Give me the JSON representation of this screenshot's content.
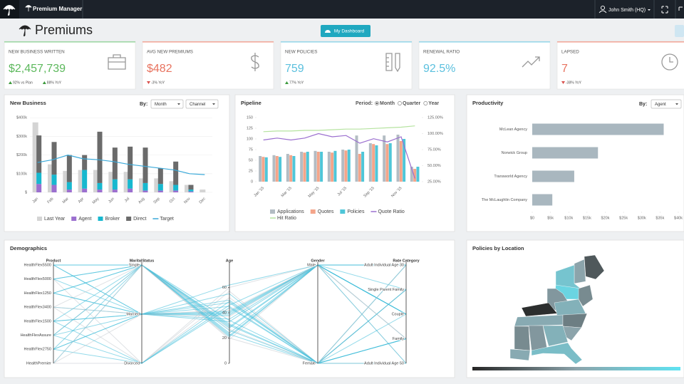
{
  "header": {
    "app_name": "Premium Manager",
    "user": "John Smith (HQ)"
  },
  "page_title": "Premiums",
  "dashboard_button": "My Dashboard",
  "kpis": [
    {
      "label": "NEW BUSINESS WRITTEN",
      "value": "$2,457,739",
      "color": "#5cb85c",
      "accent": "#9fd8a6",
      "trends": [
        {
          "dir": "up",
          "text": "92% vs Plan"
        },
        {
          "dir": "up",
          "text": "88% YoY"
        }
      ]
    },
    {
      "label": "AVG NEW PREMIUMS",
      "value": "$482",
      "color": "#e8735f",
      "accent": "#f2aa9c",
      "trends": [
        {
          "dir": "down",
          "text": "-3% YoY"
        }
      ]
    },
    {
      "label": "NEW POLICIES",
      "value": "759",
      "color": "#5bc0de",
      "accent": "#9ad8ea",
      "trends": [
        {
          "dir": "up",
          "text": "77% YoY"
        }
      ]
    },
    {
      "label": "RENEWAL RATIO",
      "value": "92.5%",
      "color": "#5bc0de",
      "accent": "#9ad8ea",
      "trends": []
    },
    {
      "label": "LAPSED",
      "value": "7",
      "color": "#e8735f",
      "accent": "#f2aa9c",
      "trends": [
        {
          "dir": "down",
          "text": "-38% YoY"
        }
      ]
    }
  ],
  "chart_data": [
    {
      "type": "bar",
      "title": "New Business",
      "by_label": "By:",
      "options": [
        "Month",
        "Channel"
      ],
      "categories": [
        "Jan",
        "Feb",
        "Mar",
        "Apr",
        "May",
        "Jun",
        "Jul",
        "Aug",
        "Sep",
        "Oct",
        "Nov",
        "Dec"
      ],
      "series": [
        {
          "name": "Last Year",
          "color": "#d4d4d4",
          "kind": "bar",
          "stack": false,
          "values": [
            375000,
            150000,
            115000,
            120000,
            120000,
            110000,
            110000,
            75000,
            75000,
            60000,
            40000,
            15000
          ]
        },
        {
          "name": "Agent",
          "color": "#9b6fcf",
          "kind": "bar",
          "stack": true,
          "values": [
            45000,
            40000,
            15000,
            20000,
            15000,
            15000,
            20000,
            10000,
            10000,
            10000,
            5000,
            0
          ]
        },
        {
          "name": "Broker",
          "color": "#17b8cf",
          "kind": "bar",
          "stack": true,
          "values": [
            60000,
            55000,
            40000,
            100000,
            35000,
            55000,
            50000,
            40000,
            35000,
            30000,
            10000,
            0
          ]
        },
        {
          "name": "Direct",
          "color": "#6b6b6b",
          "kind": "bar",
          "stack": true,
          "values": [
            200000,
            175000,
            145000,
            80000,
            275000,
            170000,
            175000,
            190000,
            85000,
            125000,
            25000,
            0
          ]
        },
        {
          "name": "Target",
          "color": "#3aa9d9",
          "kind": "line",
          "stack": false,
          "values": [
            160000,
            175000,
            200000,
            180000,
            175000,
            165000,
            150000,
            140000,
            130000,
            120000,
            100000,
            95000
          ]
        }
      ],
      "ylim": [
        0,
        420000
      ],
      "yticks": [
        {
          "value": 0,
          "label": "$"
        },
        {
          "value": 100000,
          "label": "$100k"
        },
        {
          "value": 200000,
          "label": "$200k"
        },
        {
          "value": 300000,
          "label": "$300k"
        },
        {
          "value": 400000,
          "label": "$400k"
        }
      ],
      "grid": true
    },
    {
      "type": "combo",
      "title": "Pipeline",
      "period_label": "Period:",
      "periods": [
        "Month",
        "Quarter",
        "Year"
      ],
      "selected_period": 0,
      "categories": [
        "Jan '15",
        null,
        "Mar '15",
        null,
        "May '15",
        null,
        "Jul '15",
        null,
        "Sep '15",
        null,
        "Nov '15",
        null
      ],
      "series": [
        {
          "name": "Applications",
          "color": "#b3bcc3",
          "kind": "bar",
          "values": [
            60,
            62,
            65,
            70,
            72,
            70,
            75,
            108,
            90,
            108,
            110,
            35
          ]
        },
        {
          "name": "Quotes",
          "color": "#f4a58a",
          "kind": "bar",
          "values": [
            58,
            60,
            62,
            68,
            70,
            68,
            73,
            65,
            88,
            88,
            95,
            30
          ]
        },
        {
          "name": "Policies",
          "color": "#4fc6d8",
          "kind": "bar",
          "values": [
            57,
            58,
            60,
            70,
            70,
            72,
            75,
            70,
            85,
            90,
            100,
            35
          ]
        },
        {
          "name": "Quote Ratio",
          "color": "#9b6fcf",
          "kind": "line",
          "axis": "y2",
          "values": [
            90,
            93,
            90,
            93,
            100,
            95,
            97,
            85,
            92,
            87,
            95,
            30
          ]
        },
        {
          "name": "Hit Ratio",
          "color": "#b6e3a0",
          "kind": "line",
          "axis": "y2",
          "values": [
            103,
            104,
            104,
            105,
            105,
            106,
            107,
            107,
            108,
            109,
            110,
            112
          ]
        }
      ],
      "ylim": [
        0,
        150
      ],
      "yticks": [
        0,
        25,
        50,
        75,
        100,
        125,
        150
      ],
      "y2lim": [
        25,
        125
      ],
      "y2ticks": [
        {
          "value": 25,
          "label": "25.00%"
        },
        {
          "value": 50,
          "label": "50.00%"
        },
        {
          "value": 75,
          "label": "75.00%"
        },
        {
          "value": 100,
          "label": "100.00%"
        },
        {
          "value": 125,
          "label": "125.00%"
        }
      ]
    },
    {
      "type": "hbar",
      "title": "Productivity",
      "by_label": "By:",
      "option": "Agent",
      "categories": [
        "McLean Agency",
        "Norwick Group",
        "Transworld Agency",
        "The McLaughlin Company"
      ],
      "values": [
        36000,
        18000,
        11500,
        5500
      ],
      "color": "#a9b7bf",
      "xlim": [
        0,
        40000
      ],
      "xticks": [
        {
          "value": 0,
          "label": "$0"
        },
        {
          "value": 5000,
          "label": "$5k"
        },
        {
          "value": 10000,
          "label": "$10k"
        },
        {
          "value": 15000,
          "label": "$15k"
        },
        {
          "value": 20000,
          "label": "$20k"
        },
        {
          "value": 25000,
          "label": "$25k"
        },
        {
          "value": 30000,
          "label": "$30k"
        },
        {
          "value": 35000,
          "label": "$35k"
        },
        {
          "value": 40000,
          "label": "$40k"
        }
      ]
    },
    {
      "type": "parallel",
      "title": "Demographics",
      "color": "#3bbcd9",
      "axes": [
        {
          "name": "Product",
          "categories": [
            "HealthFlex5500",
            "HealthFlex5000",
            "HealthFlex1250",
            "HealthFlex3400",
            "HealthFlex1500",
            "HealthFlexAssure",
            "HealthFlex2750",
            "HealthPremier"
          ]
        },
        {
          "name": "MaritalStatus",
          "categories": [
            "Single",
            "Married",
            "Divorced"
          ]
        },
        {
          "name": "Age",
          "ylim": [
            0,
            80
          ],
          "yticks": [
            0,
            20,
            40,
            60
          ]
        },
        {
          "name": "Gender",
          "categories": [
            "Male",
            "Female"
          ]
        },
        {
          "name": "Rate Category",
          "categories": [
            "Adult Individual Age 30",
            "Single Parent Family",
            "Couple",
            "Family",
            "Adult Individual Age 50"
          ]
        }
      ],
      "records": [
        [
          "HealthFlex5500",
          "Single",
          28,
          "Male",
          "Adult Individual Age 30"
        ],
        [
          "HealthFlex5500",
          "Married",
          45,
          "Female",
          "Family"
        ],
        [
          "HealthFlex5000",
          "Single",
          22,
          "Male",
          "Single Parent Family"
        ],
        [
          "HealthFlex5000",
          "Divorced",
          52,
          "Female",
          "Adult Individual Age 50"
        ],
        [
          "HealthFlex1250",
          "Married",
          38,
          "Male",
          "Couple"
        ],
        [
          "HealthFlex1250",
          "Single",
          30,
          "Female",
          "Adult Individual Age 30"
        ],
        [
          "HealthFlex3400",
          "Married",
          41,
          "Male",
          "Family"
        ],
        [
          "HealthFlex3400",
          "Divorced",
          60,
          "Male",
          "Adult Individual Age 50"
        ],
        [
          "HealthFlex1500",
          "Single",
          26,
          "Female",
          "Single Parent Family"
        ],
        [
          "HealthFlex1500",
          "Married",
          35,
          "Male",
          "Couple"
        ],
        [
          "HealthFlexAssure",
          "Married",
          48,
          "Female",
          "Family"
        ],
        [
          "HealthFlexAssure",
          "Single",
          19,
          "Male",
          "Adult Individual Age 30"
        ],
        [
          "HealthFlex2750",
          "Divorced",
          44,
          "Female",
          "Single Parent Family"
        ],
        [
          "HealthFlex2750",
          "Married",
          33,
          "Male",
          "Couple"
        ],
        [
          "HealthPremier",
          "Single",
          24,
          "Male",
          "Adult Individual Age 30"
        ],
        [
          "HealthPremier",
          "Divorced",
          57,
          "Female",
          "Adult Individual Age 50"
        ],
        [
          "HealthFlex5500",
          "Married",
          39,
          "Male",
          "Couple"
        ],
        [
          "HealthFlex5000",
          "Married",
          50,
          "Female",
          "Family"
        ],
        [
          "HealthFlex1250",
          "Single",
          21,
          "Male",
          "Adult Individual Age 30"
        ],
        [
          "HealthFlex3400",
          "Single",
          27,
          "Female",
          "Single Parent Family"
        ],
        [
          "HealthFlex1500",
          "Married",
          62,
          "Male",
          "Adult Individual Age 50"
        ],
        [
          "HealthFlexAssure",
          "Divorced",
          46,
          "Male",
          "Couple"
        ],
        [
          "HealthFlex2750",
          "Single",
          31,
          "Female",
          "Adult Individual Age 30"
        ],
        [
          "HealthPremier",
          "Married",
          42,
          "Male",
          "Family"
        ],
        [
          "HealthFlex5500",
          "Single",
          34,
          "Female",
          "Family"
        ],
        [
          "HealthFlex5000",
          "Single",
          29,
          "Male",
          "Adult Individual Age 30"
        ],
        [
          "HealthFlex1250",
          "Married",
          55,
          "Female",
          "Couple"
        ],
        [
          "HealthFlex3400",
          "Married",
          37,
          "Male",
          "Family"
        ],
        [
          "HealthFlex1500",
          "Divorced",
          49,
          "Female",
          "Adult Individual Age 50"
        ],
        [
          "HealthFlexAssure",
          "Single",
          23,
          "Female",
          "Single Parent Family"
        ],
        [
          "HealthFlex2750",
          "Married",
          40,
          "Male",
          "Couple"
        ],
        [
          "HealthPremier",
          "Single",
          20,
          "Female",
          "Adult Individual Age 30"
        ]
      ]
    },
    {
      "type": "map",
      "title": "Policies by Location",
      "colorscale": [
        "#262626",
        "#8ca4ab",
        "#5fe3f2"
      ],
      "colorlim": [
        0,
        100
      ],
      "values": [
        20,
        50,
        75,
        88,
        40,
        45,
        60,
        3,
        55,
        35,
        50,
        60,
        45,
        40,
        70,
        55
      ]
    }
  ]
}
